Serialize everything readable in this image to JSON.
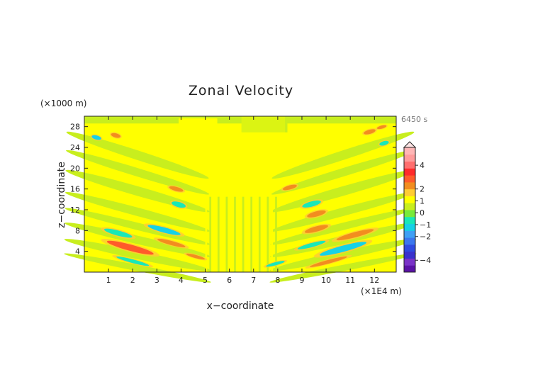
{
  "chart_data": {
    "type": "heatmap",
    "title": "Zonal Velocity",
    "xlabel": "x−coordinate",
    "ylabel": "z−coordinate",
    "x_unit": "(×1E4 m)",
    "y_unit": "(×1000 m)",
    "time_label": "6450 s",
    "x_range": [
      0,
      12.9
    ],
    "y_range": [
      0,
      30
    ],
    "x_ticks": [
      "1",
      "2",
      "3",
      "4",
      "5",
      "6",
      "7",
      "8",
      "9",
      "10",
      "11",
      "12"
    ],
    "y_ticks": [
      "4",
      "8",
      "12",
      "16",
      "20",
      "24",
      "28"
    ],
    "colorbar": {
      "tick_labels": [
        "4",
        "2",
        "1",
        "0",
        "−1",
        "−2",
        "−4"
      ],
      "tick_values": [
        4,
        2,
        1,
        0,
        -1,
        -2,
        -4
      ],
      "colors": [
        "#5a12a6",
        "#7a33c8",
        "#3a33cc",
        "#2f4be0",
        "#3b77ee",
        "#3fa0f5",
        "#16d1e6",
        "#18e8b8",
        "#78ea3a",
        "#c8ee1e",
        "#ffff00",
        "#ffcc33",
        "#f28d1f",
        "#ff5a2a",
        "#ff2a2a",
        "#ff6f6f",
        "#ff9c9c",
        "#ffb6b6"
      ],
      "extend": "max"
    },
    "features": [
      {
        "x": 1.9,
        "z": 4.7,
        "rx": 1.0,
        "rz": 0.6,
        "value": 1.3
      },
      {
        "x": 1.4,
        "z": 7.5,
        "rx": 0.6,
        "rz": 0.5,
        "value": -0.9
      },
      {
        "x": 3.6,
        "z": 5.6,
        "rx": 0.6,
        "rz": 0.4,
        "value": 1.2
      },
      {
        "x": 3.3,
        "z": 8.1,
        "rx": 0.7,
        "rz": 0.5,
        "value": -1.0
      },
      {
        "x": 2.0,
        "z": 2.1,
        "rx": 0.7,
        "rz": 0.35,
        "value": -0.9
      },
      {
        "x": 3.9,
        "z": 13.0,
        "rx": 0.3,
        "rz": 0.5,
        "value": -0.9
      },
      {
        "x": 3.8,
        "z": 16.0,
        "rx": 0.3,
        "rz": 0.4,
        "value": 1.0
      },
      {
        "x": 4.6,
        "z": 3.0,
        "rx": 0.4,
        "rz": 0.3,
        "value": 1.0
      },
      {
        "x": 10.7,
        "z": 4.5,
        "rx": 1.0,
        "rz": 0.6,
        "value": -1.1
      },
      {
        "x": 11.2,
        "z": 7.2,
        "rx": 0.8,
        "rz": 0.5,
        "value": 1.2
      },
      {
        "x": 9.4,
        "z": 5.2,
        "rx": 0.6,
        "rz": 0.4,
        "value": -0.9
      },
      {
        "x": 9.6,
        "z": 8.3,
        "rx": 0.5,
        "rz": 0.5,
        "value": 1.0
      },
      {
        "x": 10.1,
        "z": 2.0,
        "rx": 0.8,
        "rz": 0.35,
        "value": 1.2
      },
      {
        "x": 9.4,
        "z": 13.1,
        "rx": 0.4,
        "rz": 0.5,
        "value": -0.9
      },
      {
        "x": 9.6,
        "z": 11.2,
        "rx": 0.4,
        "rz": 0.5,
        "value": 1.0
      },
      {
        "x": 7.9,
        "z": 1.6,
        "rx": 0.4,
        "rz": 0.3,
        "value": -0.9
      },
      {
        "x": 8.5,
        "z": 16.3,
        "rx": 0.3,
        "rz": 0.4,
        "value": 0.9
      },
      {
        "x": 0.5,
        "z": 25.9,
        "rx": 0.2,
        "rz": 0.4,
        "value": -1.0
      },
      {
        "x": 1.3,
        "z": 26.3,
        "rx": 0.2,
        "rz": 0.4,
        "value": 1.0
      },
      {
        "x": 12.4,
        "z": 24.8,
        "rx": 0.2,
        "rz": 0.4,
        "value": -0.9
      },
      {
        "x": 11.8,
        "z": 27.0,
        "rx": 0.25,
        "rz": 0.4,
        "value": 1.0
      },
      {
        "x": 12.3,
        "z": 27.9,
        "rx": 0.2,
        "rz": 0.3,
        "value": 1.0
      }
    ]
  }
}
